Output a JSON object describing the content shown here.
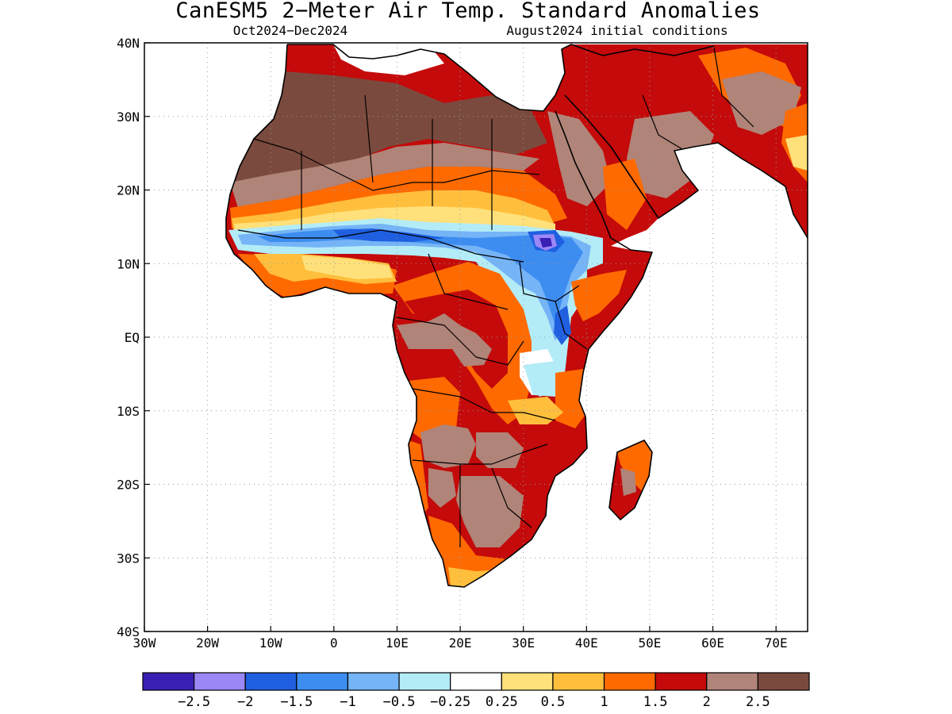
{
  "title": "CanESM5 2−Meter Air Temp. Standard Anomalies",
  "subtitle_left": "Oct2024−Dec2024",
  "subtitle_right": "August2024 initial conditions",
  "map": {
    "lon_range": [
      -30,
      75
    ],
    "lat_range": [
      -40,
      40
    ],
    "x_ticks": [
      {
        "lon": -30,
        "label": "30W"
      },
      {
        "lon": -20,
        "label": "20W"
      },
      {
        "lon": -10,
        "label": "10W"
      },
      {
        "lon": 0,
        "label": "0"
      },
      {
        "lon": 10,
        "label": "10E"
      },
      {
        "lon": 20,
        "label": "20E"
      },
      {
        "lon": 30,
        "label": "30E"
      },
      {
        "lon": 40,
        "label": "40E"
      },
      {
        "lon": 50,
        "label": "50E"
      },
      {
        "lon": 60,
        "label": "60E"
      },
      {
        "lon": 70,
        "label": "70E"
      }
    ],
    "y_ticks": [
      {
        "lat": 40,
        "label": "40N"
      },
      {
        "lat": 30,
        "label": "30N"
      },
      {
        "lat": 20,
        "label": "20N"
      },
      {
        "lat": 10,
        "label": "10N"
      },
      {
        "lat": 0,
        "label": "EQ"
      },
      {
        "lat": -10,
        "label": "10S"
      },
      {
        "lat": -20,
        "label": "20S"
      },
      {
        "lat": -30,
        "label": "30S"
      },
      {
        "lat": -40,
        "label": "40S"
      }
    ],
    "grid": true
  },
  "colorbar": {
    "colors": [
      "#3a1fb5",
      "#9b87f5",
      "#1f5fe0",
      "#3d8df0",
      "#75b4f6",
      "#b3ecf7",
      "#ffffff",
      "#ffe07a",
      "#ffbf3d",
      "#ff6a00",
      "#c40a0a",
      "#b08478",
      "#7a4a3e"
    ],
    "labels": [
      "−2.5",
      "−2",
      "−1.5",
      "−1",
      "−0.5",
      "−0.25",
      "0.25",
      "0.5",
      "1",
      "1.5",
      "2",
      "2.5"
    ]
  },
  "anomaly_regions": [
    {
      "name": "Sahara north",
      "value": 2.5,
      "color": "#7a4a3e"
    },
    {
      "name": "Sahara edge",
      "value": 2.0,
      "color": "#b08478"
    },
    {
      "name": "Sahel band warm",
      "value": 1.5,
      "color": "#ff6a00"
    },
    {
      "name": "Sahel cold band",
      "value": -1.0,
      "color": "#3d8df0"
    },
    {
      "name": "Ethiopian highlands",
      "value": -2.5,
      "color": "#3a1fb5"
    },
    {
      "name": "Central Africa",
      "value": 2.0,
      "color": "#c40a0a"
    },
    {
      "name": "Southern Africa",
      "value": 2.5,
      "color": "#b08478"
    },
    {
      "name": "Madagascar",
      "value": 2.0,
      "color": "#c40a0a"
    },
    {
      "name": "Arabian Peninsula",
      "value": 2.0,
      "color": "#c40a0a"
    }
  ]
}
